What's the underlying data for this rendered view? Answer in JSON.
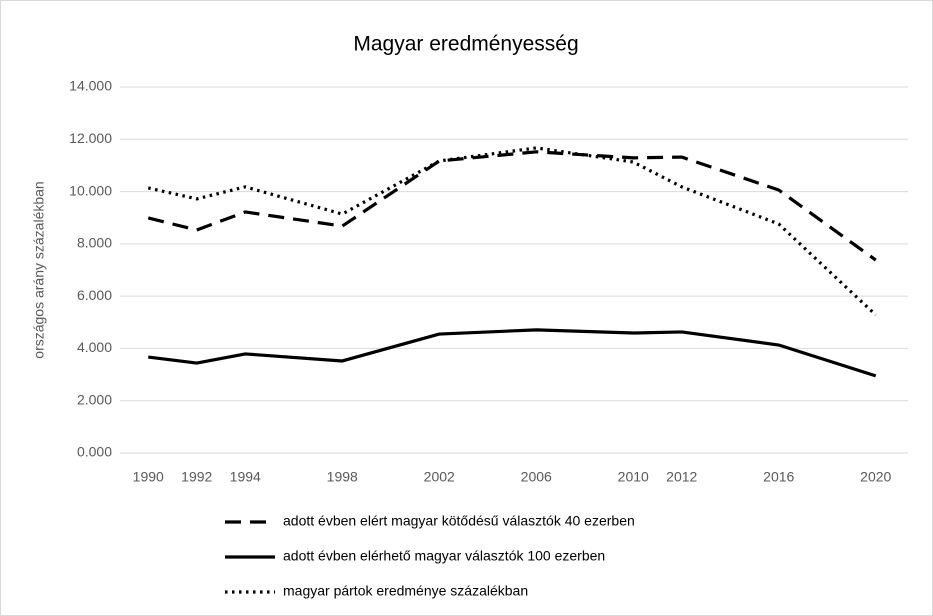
{
  "chart_data": {
    "type": "line",
    "title": "Magyar eredményesség",
    "y_label": "országos arány százalékban",
    "x": [
      1990,
      1992,
      1994,
      1998,
      2002,
      2006,
      2010,
      2012,
      2016,
      2020
    ],
    "xlim": [
      1989,
      2021
    ],
    "xticks": [
      1990,
      1992,
      1994,
      1998,
      2002,
      2006,
      2010,
      2012,
      2016,
      2020
    ],
    "ylim": [
      0,
      14
    ],
    "yticks": [
      {
        "value": 0,
        "label": "0.000"
      },
      {
        "value": 2,
        "label": "2.000"
      },
      {
        "value": 4,
        "label": "4.000"
      },
      {
        "value": 6,
        "label": "6.000"
      },
      {
        "value": 8,
        "label": "8.000"
      },
      {
        "value": 10,
        "label": "10.000"
      },
      {
        "value": 12,
        "label": "12.000"
      },
      {
        "value": 14,
        "label": "14.000"
      }
    ],
    "grid": true,
    "legend": "bottom",
    "series": [
      {
        "name": "adott évben elért magyar kötődésű választók 40 ezerben",
        "color": "#000000",
        "dash": "dashed",
        "values": [
          8.99,
          8.53,
          9.22,
          8.68,
          11.17,
          11.52,
          11.29,
          11.32,
          10.06,
          7.38
        ]
      },
      {
        "name": "adott évben elérhető magyar választók 100 ezerben",
        "color": "#000000",
        "dash": "solid",
        "values": [
          3.67,
          3.44,
          3.79,
          3.52,
          4.55,
          4.71,
          4.59,
          4.63,
          4.13,
          2.95
        ]
      },
      {
        "name": "magyar pártok eredménye százalékban",
        "color": "#000000",
        "dash": "dotted",
        "values": [
          10.14,
          9.72,
          10.18,
          9.14,
          11.17,
          11.67,
          11.13,
          10.18,
          8.76,
          5.28
        ]
      }
    ]
  }
}
